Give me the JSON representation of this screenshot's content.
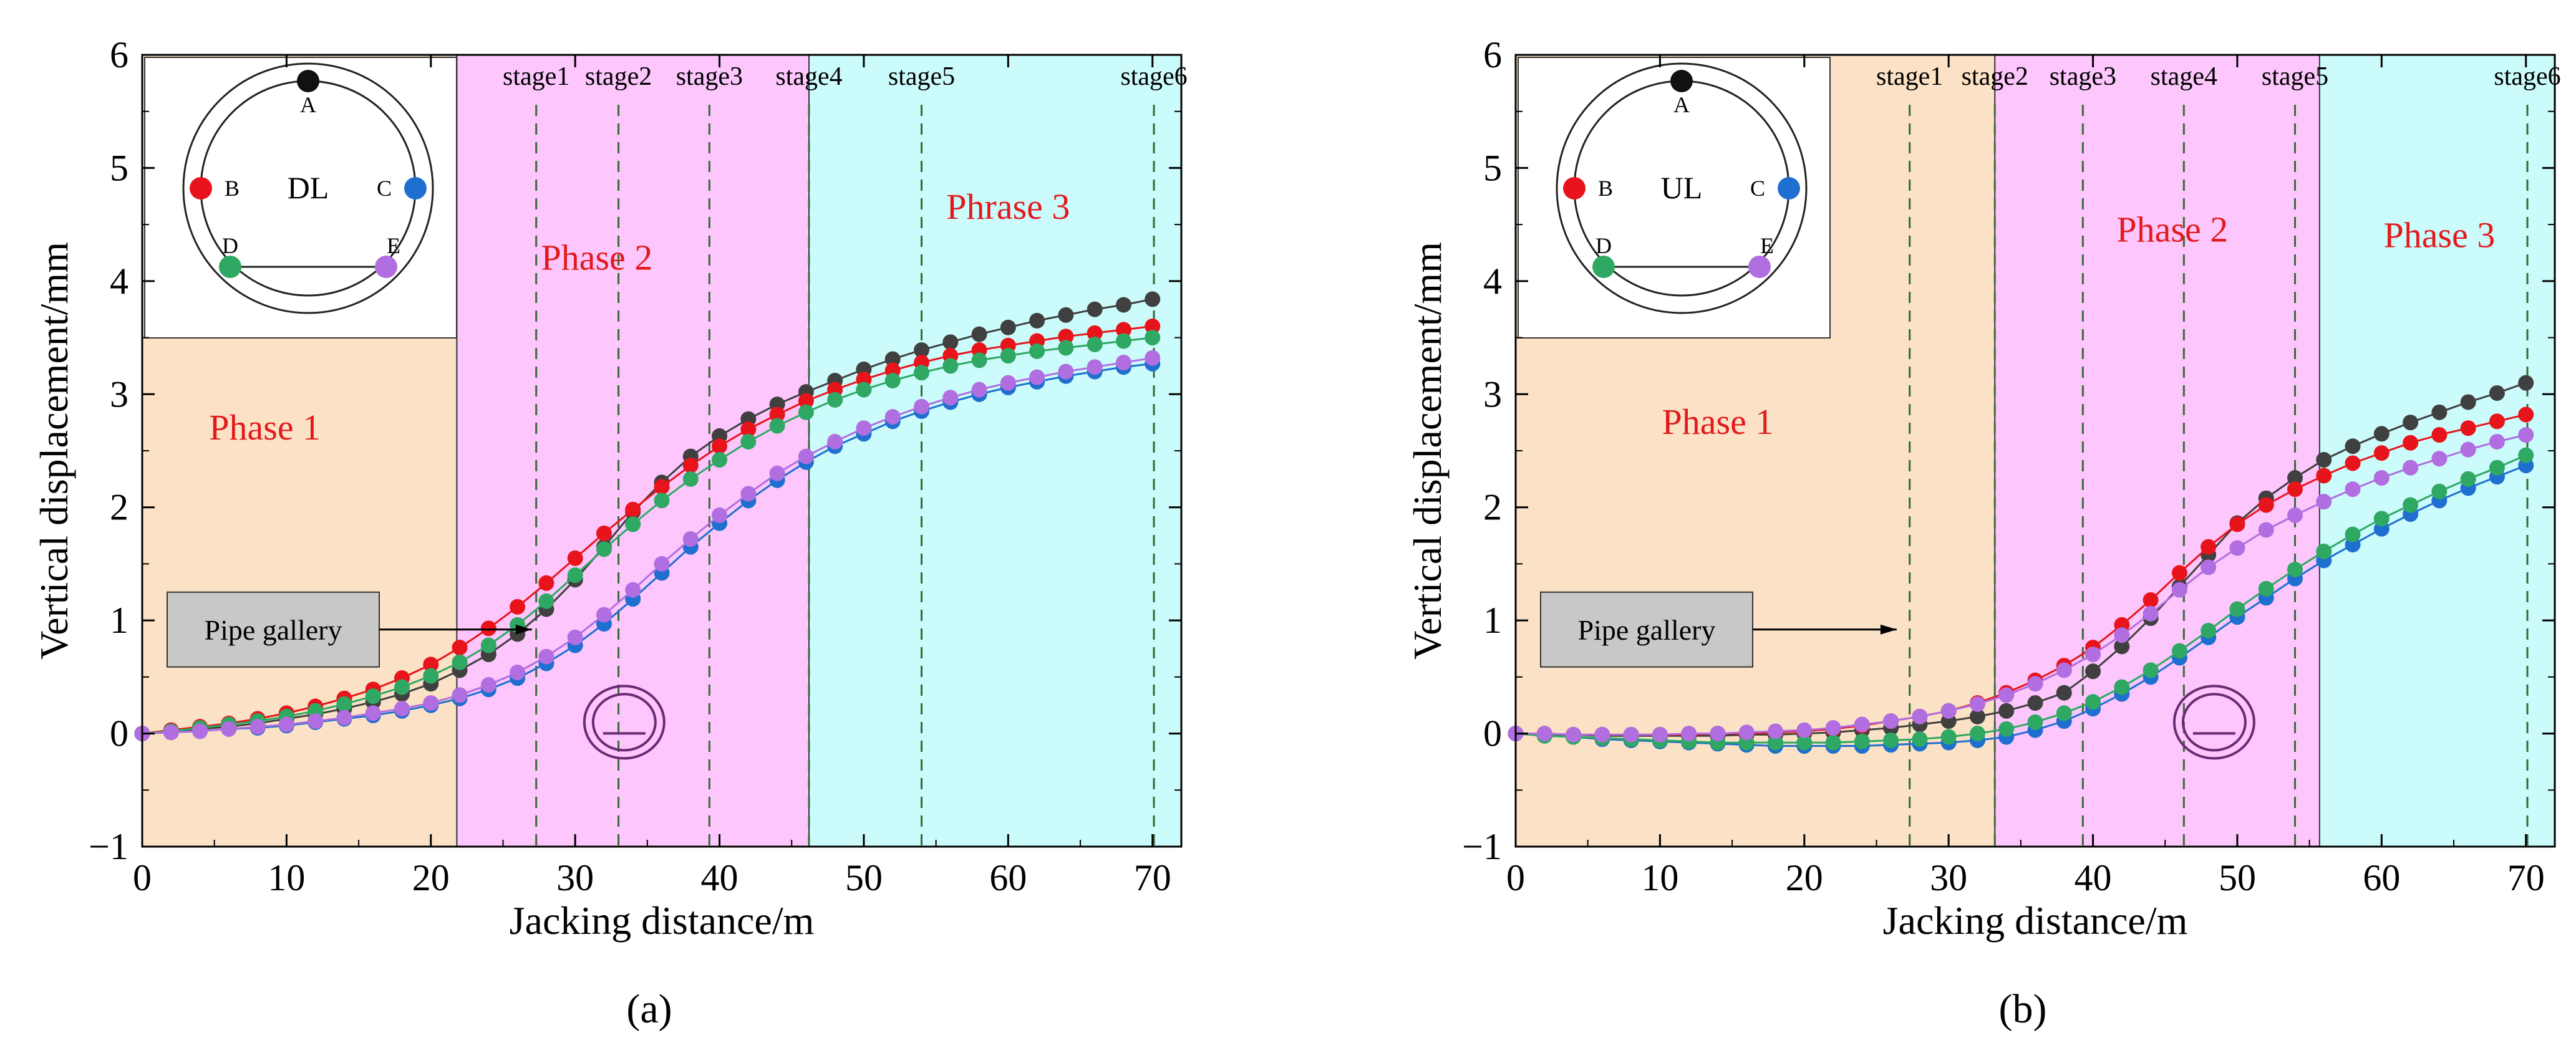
{
  "chart_data": [
    {
      "type": "line",
      "panel_label": "(a)",
      "xlabel": "Jacking distance/m",
      "ylabel": "Vertical displacement/mm",
      "xlim": [
        0,
        72
      ],
      "ylim": [
        -1,
        6
      ],
      "xticks": [
        0,
        10,
        20,
        30,
        40,
        50,
        60,
        70
      ],
      "yticks": [
        -1,
        0,
        1,
        2,
        3,
        4,
        5,
        6
      ],
      "phases": [
        {
          "label": "Phase 1",
          "x_start": 0,
          "x_end": 21.8,
          "color": "#fbe2c6",
          "label_x": 8.5,
          "label_y": 2.6
        },
        {
          "label": "Phase 2",
          "x_start": 21.8,
          "x_end": 46.2,
          "color": "#fdc6fd",
          "label_x": 31.5,
          "label_y": 4.1
        },
        {
          "label": "Phrase 3",
          "x_start": 46.2,
          "x_end": 72,
          "color": "#ccfbfb",
          "label_x": 60,
          "label_y": 4.55
        }
      ],
      "stages": [
        {
          "label": "stage1",
          "x": 27.3
        },
        {
          "label": "stage2",
          "x": 33
        },
        {
          "label": "stage3",
          "x": 39.3
        },
        {
          "label": "stage4",
          "x": 46.2
        },
        {
          "label": "stage5",
          "x": 54
        },
        {
          "label": "stage6",
          "x": 70.1
        }
      ],
      "inset": {
        "name": "DL",
        "points": [
          "A",
          "B",
          "C",
          "D",
          "E"
        ]
      },
      "annotation": {
        "text": "Pipe gallery"
      },
      "x": [
        0,
        2,
        4,
        6,
        8,
        10,
        12,
        14,
        16,
        18,
        20,
        22,
        24,
        26,
        28,
        30,
        32,
        34,
        36,
        38,
        40,
        42,
        44,
        46,
        48,
        50,
        52,
        54,
        56,
        58,
        60,
        62,
        64,
        66,
        68,
        70
      ],
      "series": [
        {
          "name": "A",
          "color": "#404040",
          "values": [
            0,
            0.02,
            0.04,
            0.06,
            0.09,
            0.13,
            0.17,
            0.22,
            0.28,
            0.35,
            0.44,
            0.56,
            0.7,
            0.88,
            1.1,
            1.36,
            1.65,
            1.96,
            2.22,
            2.45,
            2.63,
            2.78,
            2.91,
            3.02,
            3.12,
            3.22,
            3.31,
            3.39,
            3.46,
            3.53,
            3.59,
            3.65,
            3.7,
            3.75,
            3.79,
            3.84
          ]
        },
        {
          "name": "B",
          "color": "#e8141b",
          "values": [
            0,
            0.03,
            0.06,
            0.09,
            0.13,
            0.18,
            0.24,
            0.31,
            0.39,
            0.49,
            0.61,
            0.76,
            0.93,
            1.12,
            1.33,
            1.55,
            1.77,
            1.98,
            2.18,
            2.37,
            2.54,
            2.69,
            2.82,
            2.94,
            3.04,
            3.13,
            3.21,
            3.28,
            3.34,
            3.39,
            3.43,
            3.47,
            3.51,
            3.54,
            3.57,
            3.6
          ]
        },
        {
          "name": "C",
          "color": "#1e6fd0",
          "values": [
            0,
            0.01,
            0.02,
            0.04,
            0.05,
            0.07,
            0.1,
            0.13,
            0.16,
            0.2,
            0.25,
            0.31,
            0.39,
            0.49,
            0.62,
            0.78,
            0.97,
            1.19,
            1.42,
            1.65,
            1.86,
            2.06,
            2.24,
            2.4,
            2.54,
            2.65,
            2.76,
            2.85,
            2.93,
            3,
            3.06,
            3.11,
            3.16,
            3.2,
            3.24,
            3.27
          ]
        },
        {
          "name": "D",
          "color": "#2ea862",
          "values": [
            0,
            0.02,
            0.05,
            0.08,
            0.11,
            0.15,
            0.2,
            0.26,
            0.33,
            0.41,
            0.51,
            0.63,
            0.78,
            0.96,
            1.17,
            1.4,
            1.63,
            1.85,
            2.06,
            2.25,
            2.42,
            2.58,
            2.72,
            2.84,
            2.95,
            3.04,
            3.12,
            3.19,
            3.25,
            3.3,
            3.34,
            3.38,
            3.41,
            3.44,
            3.47,
            3.5
          ]
        },
        {
          "name": "E",
          "color": "#b16ee0",
          "values": [
            0,
            0.01,
            0.02,
            0.04,
            0.06,
            0.08,
            0.11,
            0.14,
            0.18,
            0.22,
            0.27,
            0.34,
            0.43,
            0.54,
            0.68,
            0.85,
            1.05,
            1.27,
            1.5,
            1.72,
            1.93,
            2.12,
            2.3,
            2.45,
            2.58,
            2.7,
            2.8,
            2.89,
            2.97,
            3.04,
            3.1,
            3.15,
            3.2,
            3.24,
            3.28,
            3.32
          ]
        }
      ]
    },
    {
      "type": "line",
      "panel_label": "(b)",
      "xlabel": "Jacking distance/m",
      "ylabel": "Vertical displacement/mm",
      "xlim": [
        0,
        72
      ],
      "ylim": [
        -1,
        6
      ],
      "xticks": [
        0,
        10,
        20,
        30,
        40,
        50,
        60,
        70
      ],
      "yticks": [
        -1,
        0,
        1,
        2,
        3,
        4,
        5,
        6
      ],
      "phases": [
        {
          "label": "Phase 1",
          "x_start": 0,
          "x_end": 33.2,
          "color": "#fbe2c6",
          "label_x": 14,
          "label_y": 2.65
        },
        {
          "label": "Phase 2",
          "x_start": 33.2,
          "x_end": 55.7,
          "color": "#fdc6fd",
          "label_x": 45.5,
          "label_y": 4.35
        },
        {
          "label": "Phase 3",
          "x_start": 55.7,
          "x_end": 72,
          "color": "#ccfbfb",
          "label_x": 64,
          "label_y": 4.3
        }
      ],
      "stages": [
        {
          "label": "stage1",
          "x": 27.3
        },
        {
          "label": "stage2",
          "x": 33.2
        },
        {
          "label": "stage3",
          "x": 39.3
        },
        {
          "label": "stage4",
          "x": 46.3
        },
        {
          "label": "stage5",
          "x": 54
        },
        {
          "label": "stage6",
          "x": 70.1
        }
      ],
      "inset": {
        "name": "UL",
        "points": [
          "A",
          "B",
          "C",
          "D",
          "E"
        ]
      },
      "annotation": {
        "text": "Pipe gallery"
      },
      "x": [
        0,
        2,
        4,
        6,
        8,
        10,
        12,
        14,
        16,
        18,
        20,
        22,
        24,
        26,
        28,
        30,
        32,
        34,
        36,
        38,
        40,
        42,
        44,
        46,
        48,
        50,
        52,
        54,
        56,
        58,
        60,
        62,
        64,
        66,
        68,
        70
      ],
      "series": [
        {
          "name": "A",
          "color": "#404040",
          "values": [
            0,
            -0.01,
            -0.01,
            -0.02,
            -0.02,
            -0.02,
            -0.02,
            -0.02,
            -0.01,
            -0.01,
            0,
            0.01,
            0.03,
            0.05,
            0.08,
            0.11,
            0.15,
            0.2,
            0.27,
            0.36,
            0.55,
            0.77,
            1.02,
            1.3,
            1.58,
            1.86,
            2.08,
            2.26,
            2.42,
            2.54,
            2.65,
            2.75,
            2.84,
            2.93,
            3.01,
            3.1
          ]
        },
        {
          "name": "B",
          "color": "#e8141b",
          "values": [
            0,
            0,
            -0.01,
            -0.01,
            -0.01,
            -0.01,
            -0.01,
            0,
            0,
            0.01,
            0.02,
            0.04,
            0.07,
            0.11,
            0.15,
            0.2,
            0.27,
            0.36,
            0.47,
            0.6,
            0.76,
            0.96,
            1.18,
            1.42,
            1.65,
            1.85,
            2.02,
            2.16,
            2.28,
            2.39,
            2.48,
            2.57,
            2.64,
            2.7,
            2.76,
            2.82
          ]
        },
        {
          "name": "C",
          "color": "#1e6fd0",
          "values": [
            0,
            -0.02,
            -0.03,
            -0.05,
            -0.06,
            -0.07,
            -0.08,
            -0.09,
            -0.1,
            -0.11,
            -0.11,
            -0.11,
            -0.11,
            -0.1,
            -0.09,
            -0.08,
            -0.06,
            -0.03,
            0.03,
            0.11,
            0.22,
            0.35,
            0.5,
            0.67,
            0.85,
            1.03,
            1.2,
            1.37,
            1.53,
            1.67,
            1.81,
            1.94,
            2.06,
            2.17,
            2.27,
            2.37
          ]
        },
        {
          "name": "D",
          "color": "#2ea862",
          "values": [
            0,
            -0.02,
            -0.03,
            -0.04,
            -0.05,
            -0.06,
            -0.07,
            -0.08,
            -0.08,
            -0.08,
            -0.08,
            -0.08,
            -0.07,
            -0.06,
            -0.05,
            -0.03,
            0,
            0.04,
            0.1,
            0.18,
            0.28,
            0.41,
            0.56,
            0.73,
            0.91,
            1.1,
            1.28,
            1.45,
            1.61,
            1.76,
            1.9,
            2.02,
            2.14,
            2.25,
            2.35,
            2.46
          ]
        },
        {
          "name": "E",
          "color": "#b16ee0",
          "values": [
            0,
            0,
            -0.01,
            -0.01,
            -0.01,
            -0.01,
            0,
            0,
            0.01,
            0.02,
            0.03,
            0.05,
            0.08,
            0.11,
            0.15,
            0.2,
            0.26,
            0.34,
            0.44,
            0.56,
            0.7,
            0.87,
            1.06,
            1.27,
            1.47,
            1.64,
            1.8,
            1.93,
            2.05,
            2.16,
            2.26,
            2.35,
            2.43,
            2.51,
            2.58,
            2.64
          ]
        }
      ]
    }
  ]
}
